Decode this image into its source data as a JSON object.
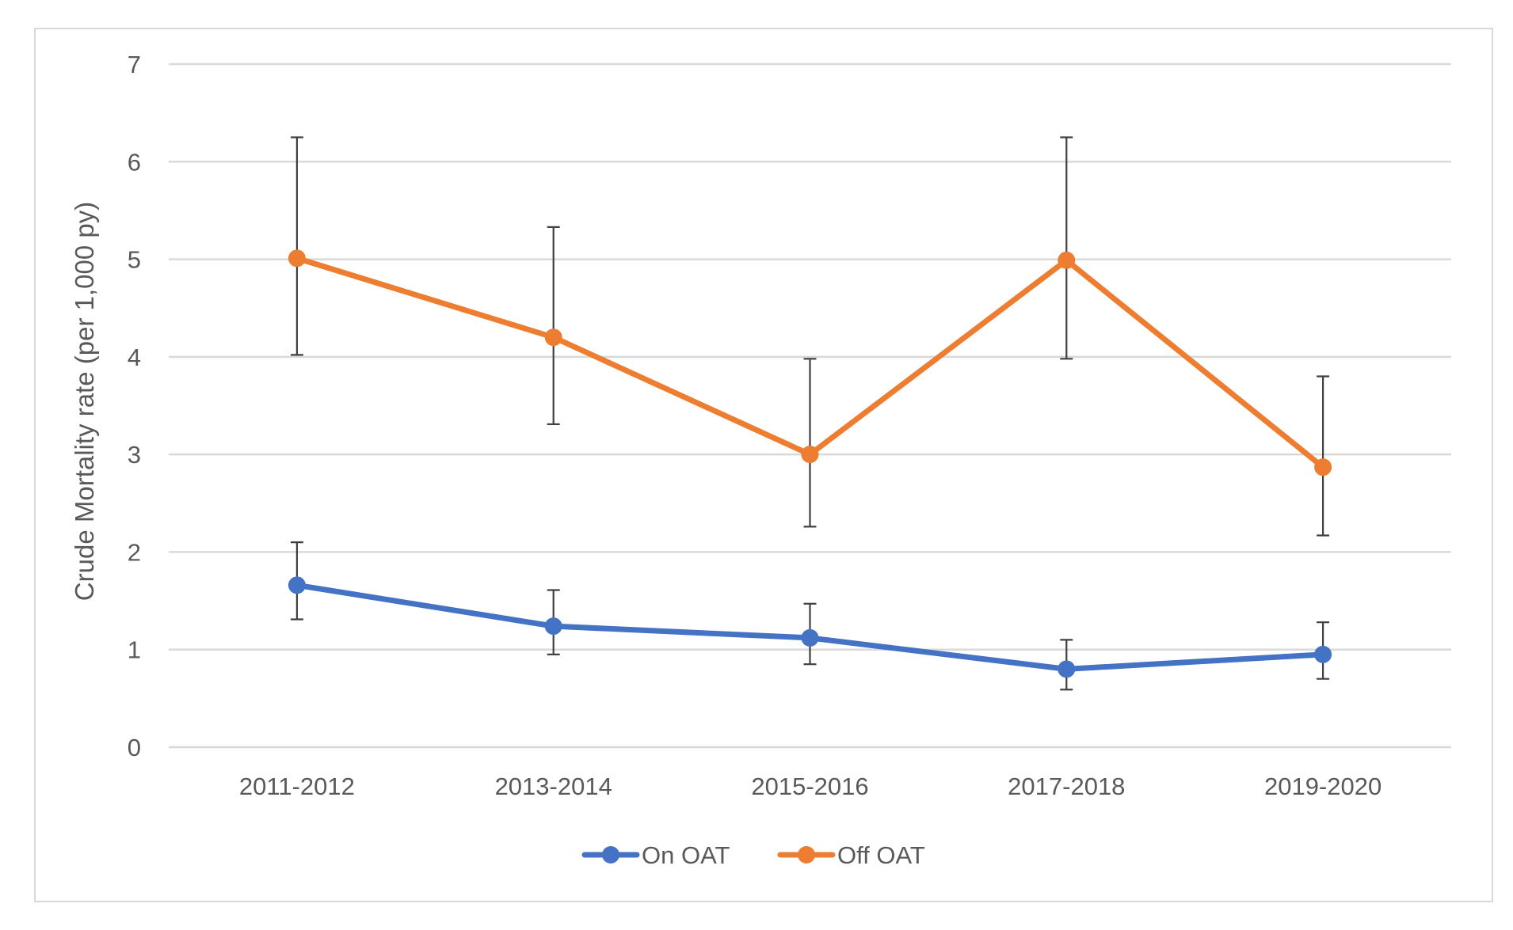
{
  "chart_data": {
    "type": "line",
    "title": "",
    "xlabel": "",
    "ylabel": "Crude Mortality rate (per 1,000 py)",
    "ylim": [
      0,
      7
    ],
    "yticks": [
      0,
      1,
      2,
      3,
      4,
      5,
      6,
      7
    ],
    "categories": [
      "2011-2012",
      "2013-2014",
      "2015-2016",
      "2017-2018",
      "2019-2020"
    ],
    "grid": true,
    "legend_position": "bottom",
    "series": [
      {
        "name": "On OAT",
        "color": "#4472c4",
        "values": [
          1.66,
          1.24,
          1.12,
          0.8,
          0.95
        ],
        "error_low": [
          1.31,
          0.95,
          0.85,
          0.59,
          0.7
        ],
        "error_high": [
          2.1,
          1.61,
          1.47,
          1.1,
          1.28
        ]
      },
      {
        "name": "Off OAT",
        "color": "#ed7d31",
        "values": [
          5.01,
          4.2,
          3.0,
          4.99,
          2.87
        ],
        "error_low": [
          4.02,
          3.31,
          2.26,
          3.98,
          2.17
        ],
        "error_high": [
          6.25,
          5.33,
          3.98,
          6.25,
          3.8
        ]
      }
    ]
  }
}
